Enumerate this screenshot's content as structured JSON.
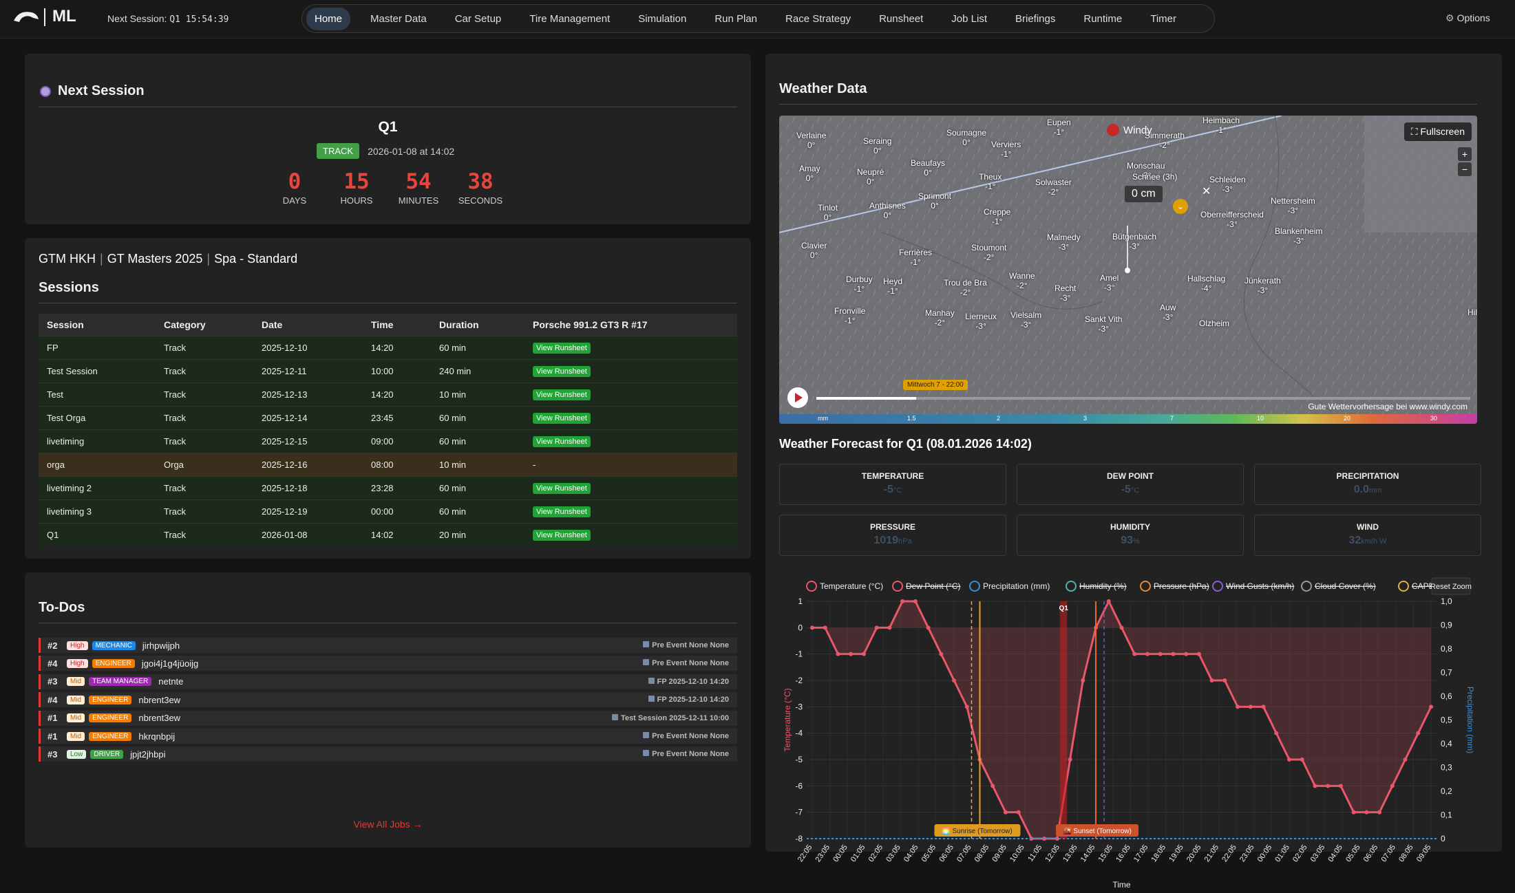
{
  "brand": "ML",
  "topbar": {
    "next_session_label": "Next Session:",
    "next_session_value": "Q1 15:54:39",
    "nav": [
      "Home",
      "Master Data",
      "Car Setup",
      "Tire Management",
      "Simulation",
      "Run Plan",
      "Race Strategy",
      "Runsheet",
      "Job List",
      "Briefings",
      "Runtime",
      "Timer"
    ],
    "active": "Home",
    "options_label": "Options"
  },
  "next_session": {
    "title": "Next Session",
    "session_name": "Q1",
    "badge": "TRACK",
    "date_text": "2026-01-08 at 14:02",
    "countdown": [
      {
        "value": "0",
        "label": "DAYS"
      },
      {
        "value": "15",
        "label": "HOURS"
      },
      {
        "value": "54",
        "label": "MINUTES"
      },
      {
        "value": "38",
        "label": "SECONDS"
      }
    ]
  },
  "sessions": {
    "breadcrumb": [
      "GTM HKH",
      "GT Masters 2025",
      "Spa - Standard"
    ],
    "title": "Sessions",
    "columns": [
      "Session",
      "Category",
      "Date",
      "Time",
      "Duration",
      "Porsche 991.2 GT3 R #17"
    ],
    "rows": [
      {
        "session": "FP",
        "category": "Track",
        "date": "2025-12-10",
        "time": "14:20",
        "duration": "60 min",
        "action": "View Runsheet"
      },
      {
        "session": "Test Session",
        "category": "Track",
        "date": "2025-12-11",
        "time": "10:00",
        "duration": "240 min",
        "action": "View Runsheet"
      },
      {
        "session": "Test",
        "category": "Track",
        "date": "2025-12-13",
        "time": "14:20",
        "duration": "10 min",
        "action": "View Runsheet"
      },
      {
        "session": "Test Orga",
        "category": "Track",
        "date": "2025-12-14",
        "time": "23:45",
        "duration": "60 min",
        "action": "View Runsheet"
      },
      {
        "session": "livetiming",
        "category": "Track",
        "date": "2025-12-15",
        "time": "09:00",
        "duration": "60 min",
        "action": "View Runsheet"
      },
      {
        "session": "orga",
        "category": "Orga",
        "date": "2025-12-16",
        "time": "08:00",
        "duration": "10 min",
        "action": "-"
      },
      {
        "session": "livetiming 2",
        "category": "Track",
        "date": "2025-12-18",
        "time": "23:28",
        "duration": "60 min",
        "action": "View Runsheet"
      },
      {
        "session": "livetiming 3",
        "category": "Track",
        "date": "2025-12-19",
        "time": "00:00",
        "duration": "60 min",
        "action": "View Runsheet"
      },
      {
        "session": "Q1",
        "category": "Track",
        "date": "2026-01-08",
        "time": "14:02",
        "duration": "20 min",
        "action": "View Runsheet"
      }
    ]
  },
  "todos": {
    "title": "To-Dos",
    "items": [
      {
        "num": "#2",
        "priority": "High",
        "role": "MECHANIC",
        "name": "jirhpwijph",
        "context": "Pre Event None None"
      },
      {
        "num": "#4",
        "priority": "High",
        "role": "ENGINEER",
        "name": "jgoi4j1g4jüoijg",
        "context": "Pre Event None None"
      },
      {
        "num": "#3",
        "priority": "Mid",
        "role": "TEAM MANAGER",
        "name": "netnte",
        "context": "FP 2025-12-10 14:20"
      },
      {
        "num": "#4",
        "priority": "Mid",
        "role": "ENGINEER",
        "name": "nbrent3ew",
        "context": "FP 2025-12-10 14:20"
      },
      {
        "num": "#1",
        "priority": "Mid",
        "role": "ENGINEER",
        "name": "nbrent3ew",
        "context": "Test Session 2025-12-11 10:00"
      },
      {
        "num": "#1",
        "priority": "Mid",
        "role": "ENGINEER",
        "name": "hkrqnbpij",
        "context": "Pre Event None None"
      },
      {
        "num": "#3",
        "priority": "Low",
        "role": "DRIVER",
        "name": "jpjt2jhbpi",
        "context": "Pre Event None None"
      }
    ],
    "view_all": "View All Jobs →"
  },
  "weather": {
    "title": "Weather Data",
    "map": {
      "brand": "Windy",
      "fullscreen": "⛶ Fullscreen",
      "layer_label": "Schnee (3h)",
      "layer_value": "0 cm",
      "timeline_label": "Mittwoch 7 - 22:00",
      "credit": "Gute Wettervorhersage bei www.windy.com",
      "legend": [
        "mm",
        "1.5",
        "2",
        "3",
        "7",
        "10",
        "20",
        "30"
      ],
      "places": [
        {
          "name": "Verlaine",
          "temp": "0°"
        },
        {
          "name": "Seraing",
          "temp": "0°"
        },
        {
          "name": "Soumagne",
          "temp": "0°"
        },
        {
          "name": "Verviers",
          "temp": "-1°"
        },
        {
          "name": "Eupen",
          "temp": "-1°"
        },
        {
          "name": "Simmerath",
          "temp": "-2°"
        },
        {
          "name": "Heimbach",
          "temp": "-1°"
        },
        {
          "name": "Amay",
          "temp": "0°"
        },
        {
          "name": "Neupré",
          "temp": "0°"
        },
        {
          "name": "Beaufays",
          "temp": "0°"
        },
        {
          "name": "Theux",
          "temp": "-1°"
        },
        {
          "name": "Monschau",
          "temp": "-3°"
        },
        {
          "name": "Schleiden",
          "temp": "-3°"
        },
        {
          "name": "Solwaster",
          "temp": "-2°"
        },
        {
          "name": "Sprimont",
          "temp": "0°"
        },
        {
          "name": "Tinlot",
          "temp": "0°"
        },
        {
          "name": "Anthisnes",
          "temp": "0°"
        },
        {
          "name": "Creppe",
          "temp": "-1°"
        },
        {
          "name": "Oberreifferscheid",
          "temp": "-3°"
        },
        {
          "name": "Nettersheim",
          "temp": "-3°"
        },
        {
          "name": "Malmedy",
          "temp": "-3°"
        },
        {
          "name": "Bütgenbach",
          "temp": "-3°"
        },
        {
          "name": "Blankenheim",
          "temp": "-3°"
        },
        {
          "name": "Clavier",
          "temp": "0°"
        },
        {
          "name": "Ferrières",
          "temp": "-1°"
        },
        {
          "name": "Stoumont",
          "temp": "-2°"
        },
        {
          "name": "Durbuy",
          "temp": "-1°"
        },
        {
          "name": "Heyd",
          "temp": "-1°"
        },
        {
          "name": "Trou de Bra",
          "temp": "-2°"
        },
        {
          "name": "Wanne",
          "temp": "-2°"
        },
        {
          "name": "Amel",
          "temp": "-3°"
        },
        {
          "name": "Hallschlag",
          "temp": "-4°"
        },
        {
          "name": "Jünkerath",
          "temp": "-3°"
        },
        {
          "name": "Recht",
          "temp": "-3°"
        },
        {
          "name": "Fronville",
          "temp": "-1°"
        },
        {
          "name": "Manhay",
          "temp": "-2°"
        },
        {
          "name": "Lierneux",
          "temp": "-3°"
        },
        {
          "name": "Vielsalm",
          "temp": "-3°"
        },
        {
          "name": "Sankt Vith",
          "temp": "-3°"
        },
        {
          "name": "Auw",
          "temp": "-3°"
        },
        {
          "name": "Olzheim",
          "temp": ""
        },
        {
          "name": "Hille",
          "temp": ""
        }
      ]
    },
    "forecast_title": "Weather Forecast for Q1 (08.01.2026 14:02)",
    "metrics": [
      {
        "label": "TEMPERATURE",
        "value": "-5",
        "unit": "°C"
      },
      {
        "label": "DEW POINT",
        "value": "-5",
        "unit": "°C"
      },
      {
        "label": "PRECIPITATION",
        "value": "0.0",
        "unit": "mm"
      },
      {
        "label": "PRESSURE",
        "value": "1019",
        "unit": "hPa"
      },
      {
        "label": "HUMIDITY",
        "value": "93",
        "unit": "%"
      },
      {
        "label": "WIND",
        "value": "32",
        "unit": "km/h W"
      }
    ]
  },
  "chart_data": {
    "type": "line",
    "legend": [
      "Temperature (°C)",
      "Dew Point (°C)",
      "Precipitation (mm)",
      "Humidity (%)",
      "Pressure (hPa)",
      "Wind Gusts (km/h)",
      "Cloud Cover (%)",
      "CAPE (J/kg)"
    ],
    "legend_struck": [
      false,
      true,
      false,
      true,
      true,
      true,
      true,
      true
    ],
    "legend_colors": [
      "#e8576b",
      "#e8576b",
      "#3a8fd8",
      "#4bb8b0",
      "#e0883a",
      "#8a5cd8",
      "#999999",
      "#e0b040"
    ],
    "reset_label": "Reset Zoom",
    "ylabel": "Temperature (°C)",
    "y2label": "Precipitation (mm)",
    "xlabel": "Time",
    "ylim": [
      -8,
      1
    ],
    "y2lim": [
      0,
      1
    ],
    "yticks": [
      "1",
      "0",
      "-1",
      "-2",
      "-3",
      "-4",
      "-5",
      "-6",
      "-7",
      "-8"
    ],
    "y2ticks": [
      "1,0",
      "0,9",
      "0,8",
      "0,7",
      "0,6",
      "0,5",
      "0,4",
      "0,3",
      "0,2",
      "0,1",
      "0"
    ],
    "xticks": [
      "22:05",
      "23:05",
      "00:05",
      "01:05",
      "02:05",
      "03:05",
      "04:05",
      "05:05",
      "06:05",
      "07:05",
      "08:05",
      "09:05",
      "10:05",
      "11:05",
      "12:05",
      "13:05",
      "14:05",
      "15:05",
      "16:05",
      "17:05",
      "18:05",
      "19:05",
      "20:05",
      "21:05",
      "22:05",
      "23:05",
      "00:05",
      "01:05",
      "02:05",
      "03:05",
      "04:05",
      "05:05",
      "06:05",
      "07:05",
      "08:05",
      "09:05"
    ],
    "temperature": [
      0,
      0,
      -1,
      -1,
      -1,
      0,
      0,
      1,
      1,
      0,
      -1,
      -2,
      -3,
      -5,
      -6,
      -7,
      -7,
      -8,
      -8,
      -8,
      -5,
      -2,
      0,
      1,
      0,
      -1,
      -1,
      -1,
      -1,
      -1,
      -1,
      -2,
      -2,
      -3,
      -3,
      -3,
      -4,
      -5,
      -5,
      -6,
      -6,
      -6,
      -7,
      -7,
      -7,
      -6,
      -5,
      -4,
      -3
    ],
    "precipitation_series": "flat at 0",
    "annotations": [
      {
        "label": "Q1",
        "x_index": 19.5
      },
      {
        "label": "🌅 Sunrise (Tomorrow)",
        "x_index": 13
      },
      {
        "label": "🌇 Sunset (Tomorrow)",
        "x_index": 22
      }
    ]
  }
}
